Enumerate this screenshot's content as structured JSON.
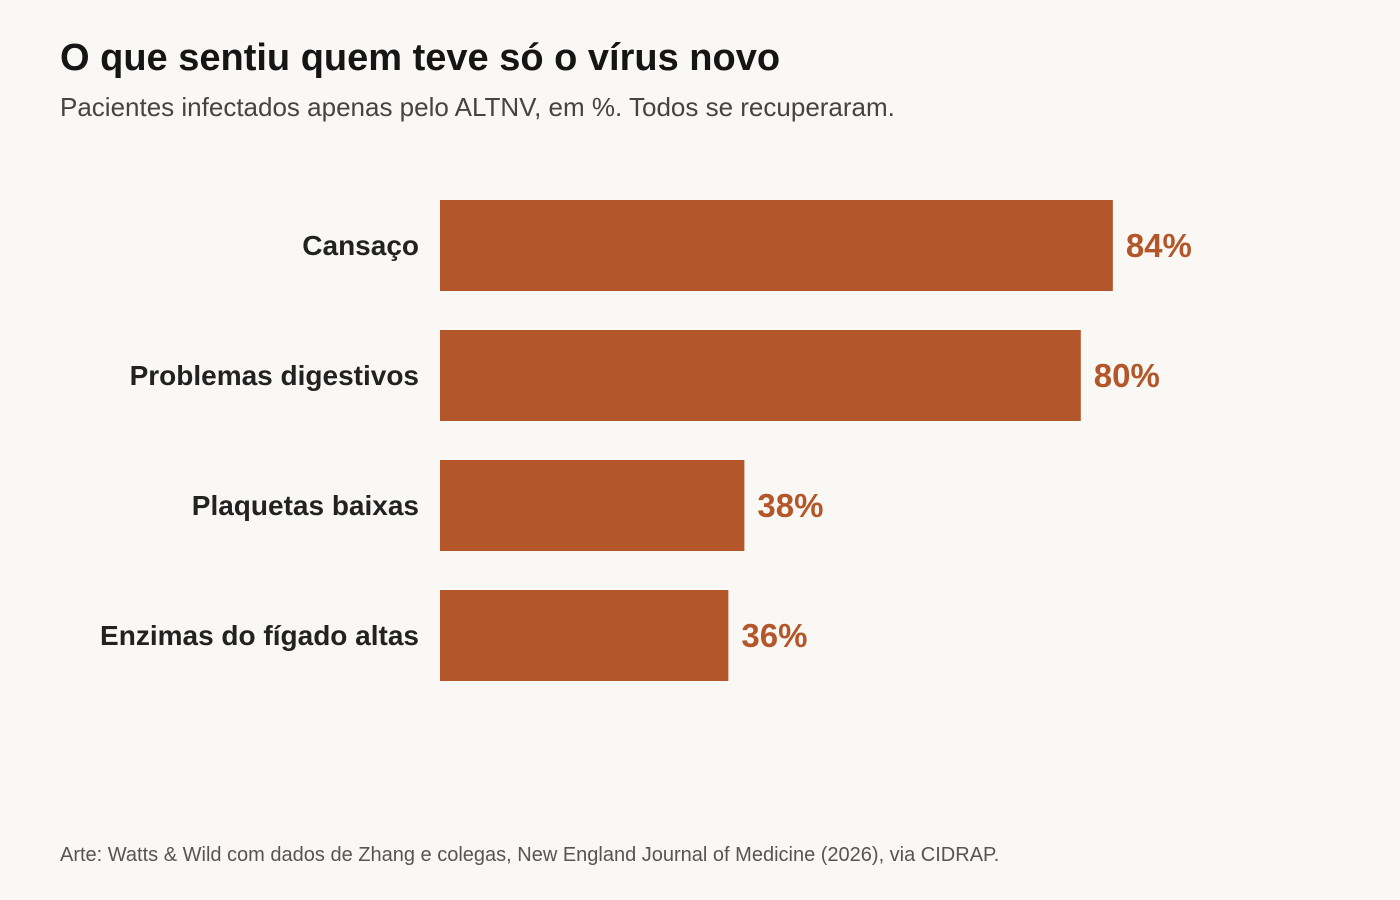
{
  "title": "O que sentiu quem teve só o vírus novo",
  "subtitle": "Pacientes infectados apenas pelo ALTNV, em %. Todos se recuperaram.",
  "source": "Arte: Watts & Wild com dados de Zhang e colegas, New England Journal of Medicine (2026), via CIDRAP.",
  "colors": {
    "bar": "#b3572b",
    "value_label": "#b3572b",
    "category_label": "#222222",
    "background": "#faf8f5"
  },
  "chart_data": {
    "type": "bar",
    "orientation": "horizontal",
    "categories": [
      "Cansaço",
      "Problemas digestivos",
      "Plaquetas baixas",
      "Enzimas do fígado altas"
    ],
    "values": [
      84,
      80,
      38,
      36
    ],
    "value_labels": [
      "84%",
      "80%",
      "38%",
      "36%"
    ],
    "unit": "%",
    "xlim": [
      0,
      100
    ],
    "grid": false,
    "legend": "none"
  }
}
